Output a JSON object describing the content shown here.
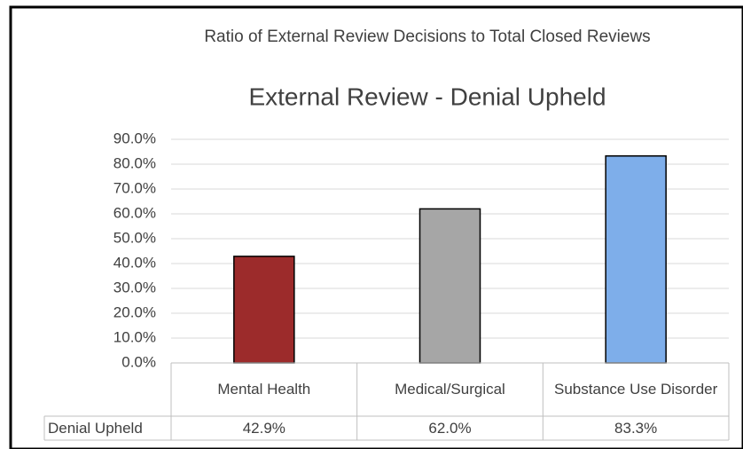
{
  "chart_data": {
    "type": "bar",
    "subtitle": "Ratio of External Review Decisions to Total Closed Reviews",
    "title": "External Review - Denial Upheld",
    "categories": [
      "Mental Health",
      "Medical/Surgical",
      "Substance Use Disorder"
    ],
    "series": [
      {
        "name": "Denial Upheld",
        "colors": [
          "#9c2b2b",
          "#a6a6a6",
          "#7eaeea"
        ],
        "values": [
          42.9,
          62.0,
          83.3
        ],
        "value_labels": [
          "42.9%",
          "62.0%",
          "83.3%"
        ]
      }
    ],
    "ylim": [
      0,
      90
    ],
    "yticks": [
      {
        "value": 0,
        "label": "0.0%"
      },
      {
        "value": 10,
        "label": "10.0%"
      },
      {
        "value": 20,
        "label": "20.0%"
      },
      {
        "value": 30,
        "label": "30.0%"
      },
      {
        "value": 40,
        "label": "40.0%"
      },
      {
        "value": 50,
        "label": "50.0%"
      },
      {
        "value": 60,
        "label": "60.0%"
      },
      {
        "value": 70,
        "label": "70.0%"
      },
      {
        "value": 80,
        "label": "80.0%"
      },
      {
        "value": 90,
        "label": "90.0%"
      }
    ],
    "grid": true
  }
}
